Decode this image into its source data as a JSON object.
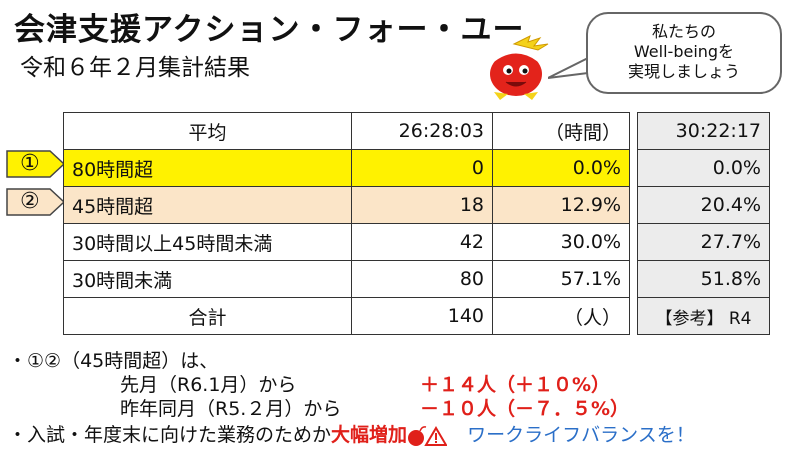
{
  "header": {
    "title": "会津支援アクション・フォー・ユー",
    "subtitle": "令和６年２月集計結果"
  },
  "bubble": {
    "line1": "私たちの",
    "line2": "Well-beingを",
    "line3": "実現しましょう"
  },
  "table": {
    "average": {
      "label": "平均",
      "time": "26:28:03",
      "unit": "（時間）",
      "ref": "30:22:17"
    },
    "rows": [
      {
        "marker": "①",
        "label": "80時間超",
        "count": "0",
        "pct": "0.0%",
        "ref": "0.0%"
      },
      {
        "marker": "②",
        "label": "45時間超",
        "count": "18",
        "pct": "12.9%",
        "ref": "20.4%"
      },
      {
        "label": "30時間以上45時間未満",
        "count": "42",
        "pct": "30.0%",
        "ref": "27.7%"
      },
      {
        "label": "30時間未満",
        "count": "80",
        "pct": "57.1%",
        "ref": "51.8%"
      }
    ],
    "total": {
      "label": "合計",
      "count": "140",
      "unit": "（人）",
      "ref_label": "【参考】 R4"
    }
  },
  "notes": {
    "line1": "・①②（45時間超）は、",
    "line2_label": "先月（R6.1月）から",
    "line2_value": "＋１４人（＋１０%）",
    "line3_label": "昨年同月（R5.２月）から",
    "line3_value": "－１０人（－７．５%）",
    "line4_label": "・入試・年度末に向けた業務のためか",
    "line4_emph": "大幅増加",
    "line4_call": "ワークライフバランスを！"
  },
  "colors": {
    "highlight_80": "#fff200",
    "highlight_45": "#fbe5c8",
    "reference_col": "#ececec",
    "alert_red": "#e0201a",
    "call_blue": "#2b6fc8"
  },
  "icons": [
    "mascot-icon",
    "bomb-icon",
    "warning-icon"
  ]
}
